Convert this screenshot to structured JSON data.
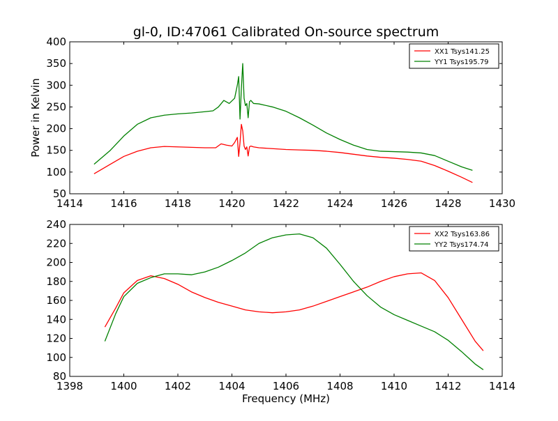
{
  "figure": {
    "title": "gl-0, ID:47061 Calibrated On-source spectrum"
  },
  "chart_data": [
    {
      "type": "line",
      "title": "gl-0, ID:47061 Calibrated On-source spectrum",
      "xlabel": "",
      "ylabel": "Power in Kelvin",
      "xlim": [
        1414,
        1430
      ],
      "ylim": [
        50,
        400
      ],
      "xticks": [
        1414,
        1416,
        1418,
        1420,
        1422,
        1424,
        1426,
        1428,
        1430
      ],
      "yticks": [
        50,
        100,
        150,
        200,
        250,
        300,
        350,
        400
      ],
      "grid": false,
      "legend_position": "top-right",
      "series": [
        {
          "name": "XX1 Tsys141.25",
          "color": "#ff0000",
          "x": [
            1414.9,
            1415.5,
            1416.0,
            1416.5,
            1417.0,
            1417.5,
            1418.0,
            1418.5,
            1419.0,
            1419.4,
            1419.6,
            1419.8,
            1420.0,
            1420.1,
            1420.2,
            1420.25,
            1420.3,
            1420.35,
            1420.4,
            1420.45,
            1420.5,
            1420.55,
            1420.6,
            1420.65,
            1420.7,
            1420.8,
            1421.0,
            1421.5,
            1422.0,
            1422.5,
            1423.0,
            1423.5,
            1424.0,
            1424.5,
            1425.0,
            1425.5,
            1426.0,
            1426.5,
            1427.0,
            1427.5,
            1428.0,
            1428.5,
            1428.9
          ],
          "y": [
            96,
            118,
            136,
            148,
            156,
            159,
            158,
            157,
            156,
            156,
            165,
            162,
            160,
            168,
            180,
            136,
            168,
            210,
            195,
            160,
            152,
            158,
            137,
            158,
            160,
            158,
            156,
            154,
            152,
            151,
            150,
            148,
            145,
            141,
            137,
            134,
            132,
            129,
            125,
            115,
            102,
            88,
            76
          ]
        },
        {
          "name": "YY1 Tsys195.79",
          "color": "#008000",
          "x": [
            1414.9,
            1415.5,
            1416.0,
            1416.5,
            1417.0,
            1417.5,
            1418.0,
            1418.5,
            1419.0,
            1419.3,
            1419.5,
            1419.7,
            1419.9,
            1420.1,
            1420.2,
            1420.25,
            1420.3,
            1420.35,
            1420.4,
            1420.45,
            1420.5,
            1420.55,
            1420.6,
            1420.65,
            1420.7,
            1420.8,
            1421.0,
            1421.5,
            1422.0,
            1422.5,
            1423.0,
            1423.5,
            1424.0,
            1424.5,
            1425.0,
            1425.5,
            1426.0,
            1426.5,
            1427.0,
            1427.5,
            1428.0,
            1428.5,
            1428.9
          ],
          "y": [
            118,
            150,
            183,
            210,
            225,
            231,
            234,
            236,
            239,
            241,
            250,
            265,
            258,
            270,
            300,
            320,
            222,
            292,
            350,
            270,
            253,
            258,
            225,
            262,
            265,
            258,
            257,
            250,
            240,
            225,
            208,
            190,
            175,
            162,
            152,
            148,
            147,
            146,
            144,
            138,
            125,
            112,
            104
          ]
        }
      ]
    },
    {
      "type": "line",
      "title": "",
      "xlabel": "Frequency (MHz)",
      "ylabel": "",
      "xlim": [
        1398,
        1414
      ],
      "ylim": [
        80,
        240
      ],
      "xticks": [
        1398,
        1400,
        1402,
        1404,
        1406,
        1408,
        1410,
        1412,
        1414
      ],
      "yticks": [
        80,
        100,
        120,
        140,
        160,
        180,
        200,
        220,
        240
      ],
      "grid": false,
      "legend_position": "top-right",
      "series": [
        {
          "name": "XX2 Tsys163.86",
          "color": "#ff0000",
          "x": [
            1399.3,
            1399.7,
            1400.0,
            1400.5,
            1401.0,
            1401.5,
            1402.0,
            1402.5,
            1403.0,
            1403.5,
            1404.0,
            1404.5,
            1405.0,
            1405.5,
            1406.0,
            1406.5,
            1407.0,
            1407.5,
            1408.0,
            1408.5,
            1409.0,
            1409.5,
            1410.0,
            1410.5,
            1411.0,
            1411.5,
            1412.0,
            1412.5,
            1413.0,
            1413.3
          ],
          "y": [
            132,
            152,
            168,
            181,
            186,
            183,
            177,
            169,
            163,
            158,
            154,
            150,
            148,
            147,
            148,
            150,
            154,
            159,
            164,
            169,
            174,
            180,
            185,
            188,
            189,
            181,
            163,
            140,
            117,
            107
          ]
        },
        {
          "name": "YY2 Tsys174.74",
          "color": "#008000",
          "x": [
            1399.3,
            1399.7,
            1400.0,
            1400.5,
            1401.0,
            1401.5,
            1402.0,
            1402.5,
            1403.0,
            1403.5,
            1404.0,
            1404.5,
            1405.0,
            1405.5,
            1406.0,
            1406.5,
            1407.0,
            1407.5,
            1408.0,
            1408.5,
            1409.0,
            1409.5,
            1410.0,
            1410.5,
            1411.0,
            1411.5,
            1412.0,
            1412.5,
            1413.0,
            1413.3
          ],
          "y": [
            117,
            146,
            164,
            178,
            184,
            188,
            188,
            187,
            190,
            195,
            202,
            210,
            220,
            226,
            229,
            230,
            226,
            215,
            198,
            180,
            165,
            153,
            145,
            139,
            133,
            127,
            118,
            106,
            93,
            87
          ]
        }
      ]
    }
  ]
}
